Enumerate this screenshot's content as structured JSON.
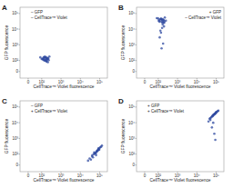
{
  "chart_data": [
    {
      "type": "scatter",
      "title": "A",
      "annotations": [
        "– GFP",
        "– CellTrace™ Violet"
      ],
      "legend": "upper left",
      "x_label": "CellTrace™ Violet fluorescence",
      "y_label": "GFP fluorescence",
      "log": true,
      "color": "#2f4aa0",
      "xlim": [
        -60,
        250000
      ],
      "ylim": [
        -60,
        250000
      ],
      "xticks": [
        0,
        {
          "value": 100,
          "label": "10²"
        },
        {
          "value": 1000,
          "label": "10³"
        },
        {
          "value": 10000,
          "label": "10⁴"
        },
        {
          "value": 100000,
          "label": "10⁵"
        }
      ],
      "yticks": [
        0,
        {
          "value": 100,
          "label": "10²"
        },
        {
          "value": 1000,
          "label": "10³"
        },
        {
          "value": 10000,
          "label": "10⁴"
        },
        {
          "value": 100000,
          "label": "10⁵"
        }
      ],
      "x": [
        120,
        150,
        180,
        90,
        200,
        250,
        140,
        170,
        110,
        210,
        160,
        130,
        190,
        230,
        100,
        175,
        145,
        220,
        125,
        185,
        155,
        205,
        135,
        165,
        115
      ],
      "values": [
        110,
        140,
        90,
        160,
        120,
        180,
        100,
        150,
        130,
        85,
        170,
        115,
        145,
        105,
        125,
        95,
        175,
        135,
        155,
        120,
        100,
        140,
        165,
        110,
        130
      ]
    },
    {
      "type": "scatter",
      "title": "B",
      "annotations": [
        "+ GFP",
        "– CellTrace™ Violet"
      ],
      "legend": "upper right",
      "x_label": "CellTrace™ Violet fluorescence",
      "y_label": "GFP fluorescence",
      "log": true,
      "color": "#2f4aa0",
      "xlim": [
        -60,
        250000
      ],
      "ylim": [
        -60,
        250000
      ],
      "xticks": [
        0,
        {
          "value": 100,
          "label": "10²"
        },
        {
          "value": 1000,
          "label": "10³"
        },
        {
          "value": 10000,
          "label": "10⁴"
        },
        {
          "value": 100000,
          "label": "10⁵"
        }
      ],
      "yticks": [
        0,
        {
          "value": 100,
          "label": "10²"
        },
        {
          "value": 1000,
          "label": "10³"
        },
        {
          "value": 10000,
          "label": "10⁴"
        },
        {
          "value": 100000,
          "label": "10⁵"
        }
      ],
      "x": [
        120,
        160,
        200,
        90,
        250,
        140,
        180,
        110,
        220,
        150,
        130,
        190,
        170,
        100,
        210,
        160,
        140,
        120,
        180,
        150,
        200,
        130,
        170,
        110,
        160,
        190,
        140
      ],
      "values": [
        30000,
        40000,
        25000,
        50000,
        35000,
        45000,
        28000,
        38000,
        55000,
        32000,
        42000,
        36000,
        20000,
        48000,
        30000,
        12000,
        6000,
        3000,
        1200,
        600,
        15000,
        8000,
        44000,
        33000,
        27000,
        39000,
        47000
      ]
    },
    {
      "type": "scatter",
      "title": "C",
      "annotations": [
        "– GFP",
        "+ CellTrace™ Violet"
      ],
      "legend": "upper left",
      "x_label": "CellTrace™ Violet fluorescence",
      "y_label": "GFP fluorescence",
      "log": true,
      "color": "#2f4aa0",
      "xlim": [
        -60,
        250000
      ],
      "ylim": [
        -60,
        250000
      ],
      "xticks": [
        0,
        {
          "value": 100,
          "label": "10²"
        },
        {
          "value": 1000,
          "label": "10³"
        },
        {
          "value": 10000,
          "label": "10⁴"
        },
        {
          "value": 100000,
          "label": "10⁵"
        }
      ],
      "yticks": [
        0,
        {
          "value": 100,
          "label": "10²"
        },
        {
          "value": 1000,
          "label": "10³"
        },
        {
          "value": 10000,
          "label": "10⁴"
        },
        {
          "value": 100000,
          "label": "10⁵"
        }
      ],
      "x": [
        30000,
        50000,
        70000,
        90000,
        40000,
        60000,
        80000,
        100000,
        120000,
        45000,
        55000,
        65000,
        75000,
        85000,
        35000,
        95000,
        110000,
        25000,
        52000,
        68000,
        78000,
        88000,
        130000,
        42000,
        62000
      ],
      "values": [
        60,
        100,
        150,
        200,
        80,
        120,
        180,
        250,
        300,
        70,
        110,
        90,
        160,
        220,
        50,
        190,
        280,
        40,
        130,
        140,
        170,
        230,
        350,
        90,
        110
      ]
    },
    {
      "type": "scatter",
      "title": "D",
      "annotations": [
        "+ GFP",
        "+ CellTrace™ Violet"
      ],
      "legend": "upper left",
      "x_label": "CellTrace™ Violet fluorescence",
      "y_label": "GFP fluorescence",
      "log": true,
      "color": "#2f4aa0",
      "xlim": [
        -60,
        250000
      ],
      "ylim": [
        -60,
        250000
      ],
      "xticks": [
        0,
        {
          "value": 100,
          "label": "10²"
        },
        {
          "value": 1000,
          "label": "10³"
        },
        {
          "value": 10000,
          "label": "10⁴"
        },
        {
          "value": 100000,
          "label": "10⁵"
        }
      ],
      "yticks": [
        0,
        {
          "value": 100,
          "label": "10²"
        },
        {
          "value": 1000,
          "label": "10³"
        },
        {
          "value": 10000,
          "label": "10⁴"
        },
        {
          "value": 100000,
          "label": "10⁵"
        }
      ],
      "x": [
        50000,
        70000,
        90000,
        60000,
        80000,
        100000,
        120000,
        55000,
        75000,
        95000,
        65000,
        85000,
        110000,
        45000,
        130000,
        70000,
        60000,
        80000,
        90000,
        50000,
        40000,
        100000,
        75000,
        85000,
        65000
      ],
      "values": [
        20000,
        30000,
        40000,
        25000,
        35000,
        45000,
        55000,
        22000,
        32000,
        42000,
        28000,
        38000,
        50000,
        18000,
        60000,
        10000,
        5000,
        2000,
        800,
        15000,
        12000,
        48000,
        34000,
        36000,
        26000
      ]
    }
  ]
}
